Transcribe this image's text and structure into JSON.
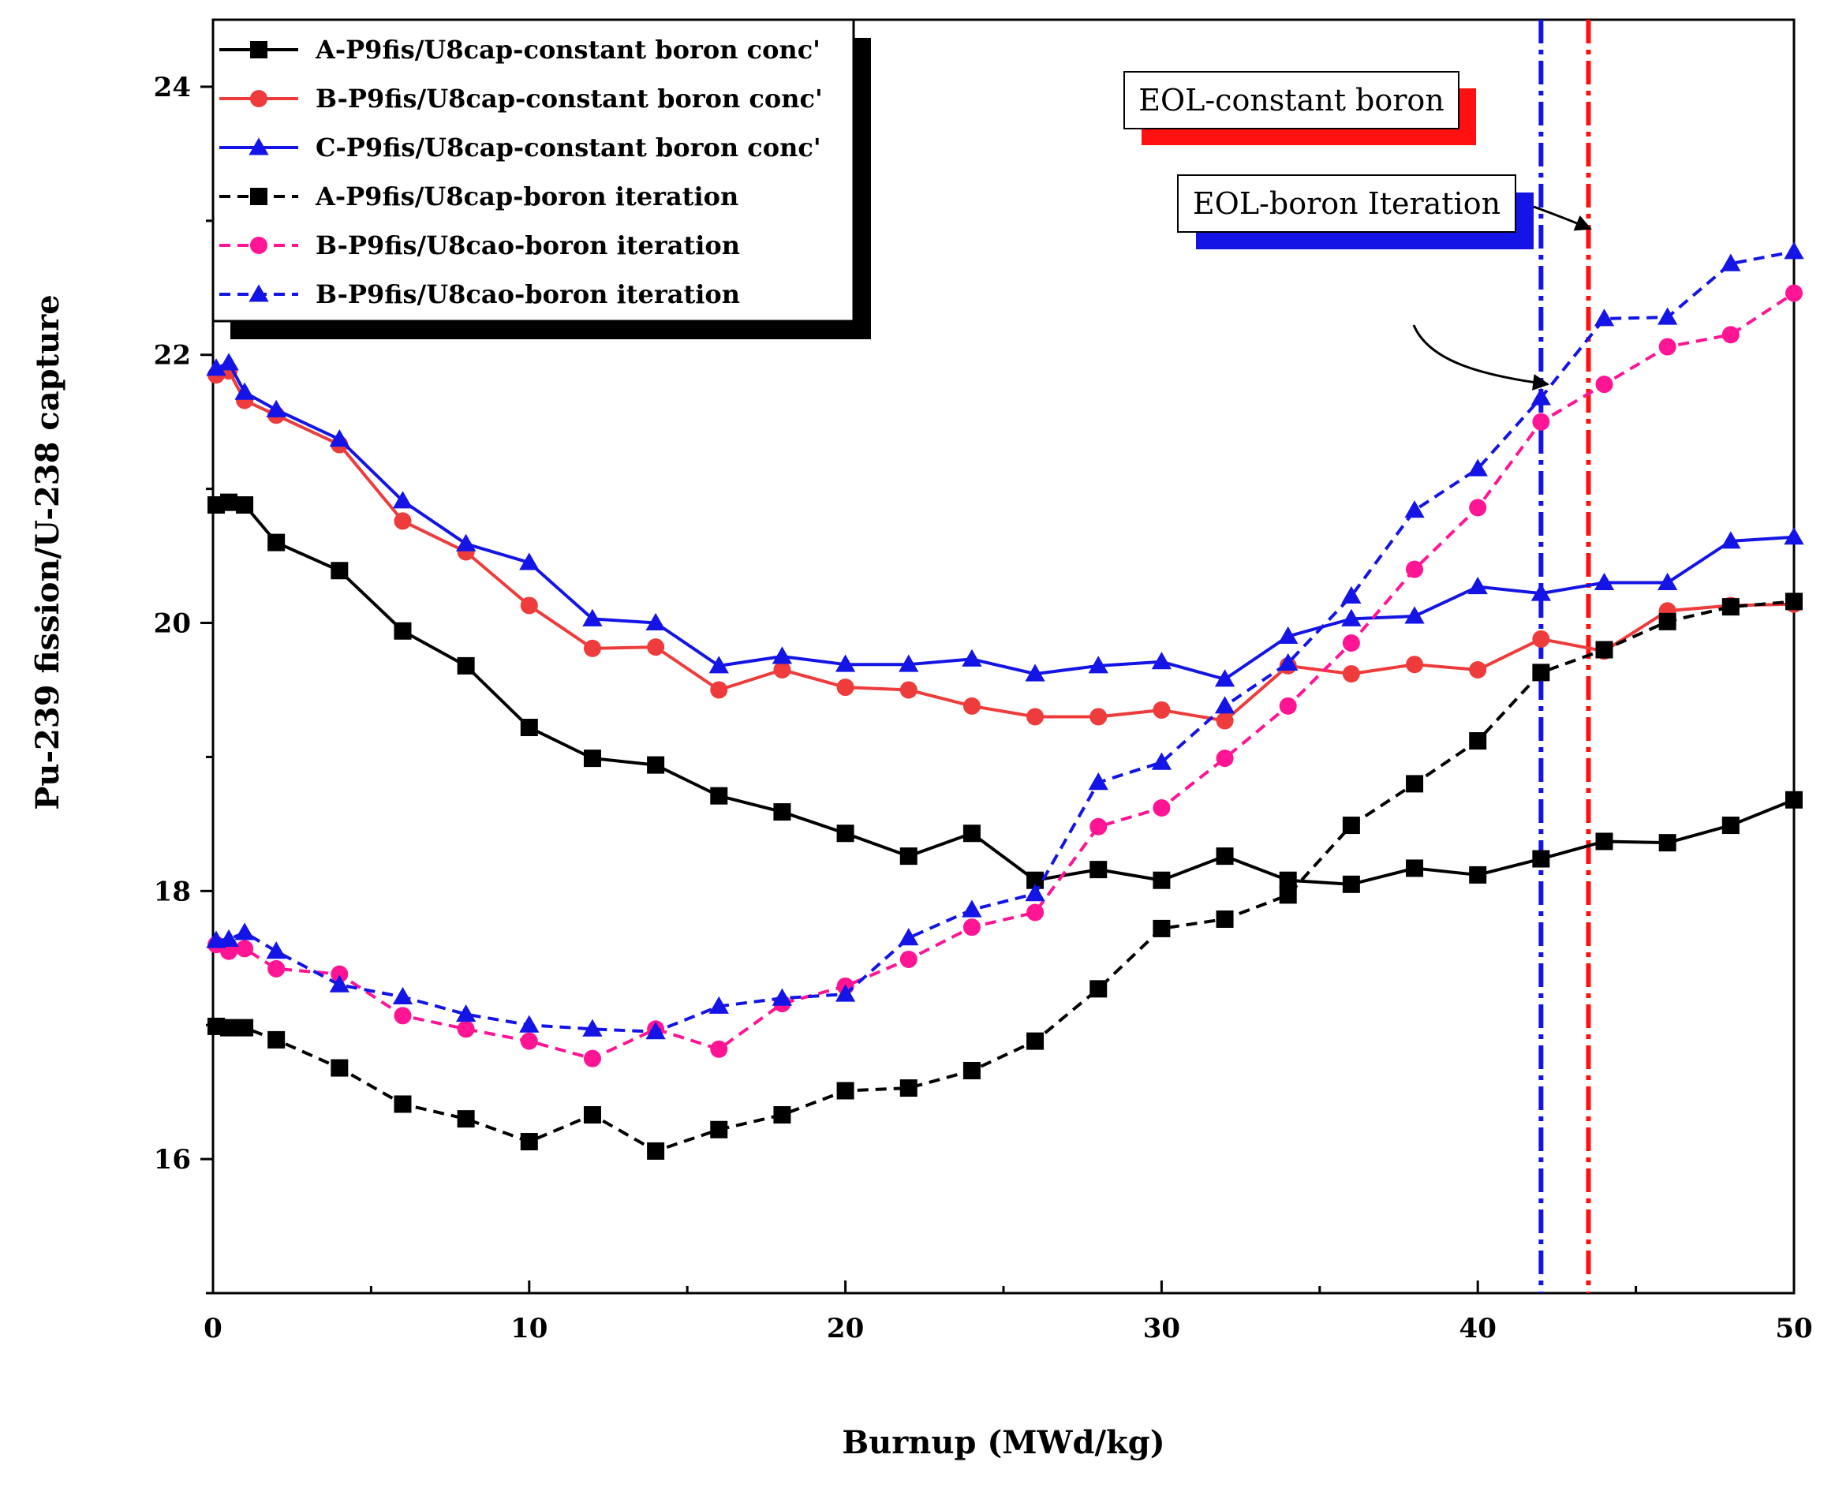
{
  "chart_data": {
    "type": "line",
    "title": "",
    "xlabel": "Burnup (MWd/kg)",
    "ylabel": "Pu-239 fission/U-238 capture",
    "xlim": [
      0,
      50
    ],
    "ylim": [
      15,
      24.5
    ],
    "xticks": [
      0,
      10,
      20,
      30,
      40,
      50
    ],
    "yticks": [
      16,
      18,
      20,
      22,
      24
    ],
    "grid": false,
    "legend_position": "top-left",
    "series": [
      {
        "name": "A-P9fis/U8cap-constant boron conc'",
        "color": "#000000",
        "dash": false,
        "marker": "square",
        "x": [
          0.1,
          0.5,
          1,
          2,
          4,
          6,
          8,
          10,
          12,
          14,
          16,
          18,
          20,
          22,
          24,
          26,
          28,
          30,
          32,
          34,
          36,
          38,
          40,
          42,
          44,
          46,
          48,
          50
        ],
        "y": [
          20.88,
          20.9,
          20.88,
          20.6,
          20.39,
          19.94,
          19.68,
          19.22,
          18.99,
          18.94,
          18.71,
          18.59,
          18.43,
          18.26,
          18.43,
          18.08,
          18.16,
          18.08,
          18.26,
          18.08,
          18.05,
          18.17,
          18.12,
          18.24,
          18.37,
          18.36,
          18.49,
          18.68
        ]
      },
      {
        "name": "B-P9fis/U8cap-constant boron conc'",
        "color": "#ee3b3b",
        "dash": false,
        "marker": "circle",
        "x": [
          0.1,
          0.5,
          1,
          2,
          4,
          6,
          8,
          10,
          12,
          14,
          16,
          18,
          20,
          22,
          24,
          26,
          28,
          30,
          32,
          34,
          36,
          38,
          40,
          42,
          44,
          46,
          48,
          50
        ],
        "y": [
          21.85,
          21.88,
          21.66,
          21.55,
          21.33,
          20.76,
          20.53,
          20.13,
          19.81,
          19.82,
          19.5,
          19.65,
          19.52,
          19.5,
          19.38,
          19.3,
          19.3,
          19.35,
          19.27,
          19.68,
          19.62,
          19.69,
          19.65,
          19.88,
          19.79,
          20.09,
          20.13,
          20.14
        ]
      },
      {
        "name": "C-P9fis/U8cap-constant boron conc'",
        "color": "#1414e6",
        "dash": false,
        "marker": "triangle",
        "x": [
          0.1,
          0.5,
          1,
          2,
          4,
          6,
          8,
          10,
          12,
          14,
          16,
          18,
          20,
          22,
          24,
          26,
          28,
          30,
          32,
          34,
          36,
          38,
          40,
          42,
          44,
          46,
          48,
          50
        ],
        "y": [
          21.9,
          21.94,
          21.72,
          21.59,
          21.37,
          20.91,
          20.59,
          20.45,
          20.03,
          20.0,
          19.68,
          19.75,
          19.69,
          19.69,
          19.73,
          19.62,
          19.68,
          19.71,
          19.58,
          19.9,
          20.03,
          20.05,
          20.27,
          20.22,
          20.3,
          20.3,
          20.61,
          20.64
        ]
      },
      {
        "name": "A-P9fis/U8cap-boron iteration",
        "color": "#000000",
        "dash": true,
        "marker": "square",
        "x": [
          0.1,
          0.5,
          1,
          2,
          4,
          6,
          8,
          10,
          12,
          14,
          16,
          18,
          20,
          22,
          24,
          26,
          28,
          30,
          32,
          34,
          36,
          38,
          40,
          42,
          44,
          46,
          48,
          50
        ],
        "y": [
          16.99,
          16.98,
          16.98,
          16.89,
          16.68,
          16.41,
          16.3,
          16.13,
          16.33,
          16.06,
          16.22,
          16.33,
          16.51,
          16.53,
          16.66,
          16.88,
          17.27,
          17.72,
          17.79,
          17.97,
          18.49,
          18.8,
          19.12,
          19.63,
          19.8,
          20.01,
          20.12,
          20.16
        ]
      },
      {
        "name": "B-P9fis/U8cao-boron iteration",
        "color": "#ff1493",
        "dash": true,
        "marker": "circle",
        "x": [
          0.1,
          0.5,
          1,
          2,
          4,
          6,
          8,
          10,
          12,
          14,
          16,
          18,
          20,
          22,
          24,
          26,
          28,
          30,
          32,
          34,
          36,
          38,
          40,
          42,
          44,
          46,
          48,
          50
        ],
        "y": [
          17.6,
          17.55,
          17.57,
          17.42,
          17.38,
          17.07,
          16.97,
          16.88,
          16.75,
          16.97,
          16.82,
          17.16,
          17.29,
          17.49,
          17.73,
          17.84,
          18.48,
          18.62,
          18.99,
          19.38,
          19.85,
          20.4,
          20.86,
          21.5,
          21.78,
          22.06,
          22.15,
          22.46
        ]
      },
      {
        "name": "B-P9fis/U8cao-boron iteration",
        "color": "#1414e6",
        "dash": true,
        "marker": "triangle",
        "x": [
          0.1,
          0.5,
          1,
          2,
          4,
          6,
          8,
          10,
          12,
          14,
          16,
          18,
          20,
          22,
          24,
          26,
          28,
          30,
          32,
          34,
          36,
          38,
          40,
          42,
          44,
          46,
          48,
          50
        ],
        "y": [
          17.63,
          17.64,
          17.69,
          17.55,
          17.3,
          17.21,
          17.08,
          17.0,
          16.97,
          16.95,
          17.14,
          17.2,
          17.23,
          17.65,
          17.86,
          17.98,
          18.81,
          18.96,
          19.38,
          19.7,
          20.2,
          20.84,
          21.15,
          21.68,
          22.27,
          22.28,
          22.68,
          22.77
        ]
      }
    ],
    "vlines": [
      {
        "x": 42,
        "color": "#1414e6",
        "label": "EOL-boron Iteration"
      },
      {
        "x": 43.5,
        "color": "#ff1111",
        "label": "EOL-constant boron"
      }
    ],
    "annotations": [
      {
        "text": "EOL-constant boron",
        "shadow_color": "#ff1111"
      },
      {
        "text": "EOL-boron Iteration",
        "shadow_color": "#1414e6"
      }
    ]
  }
}
